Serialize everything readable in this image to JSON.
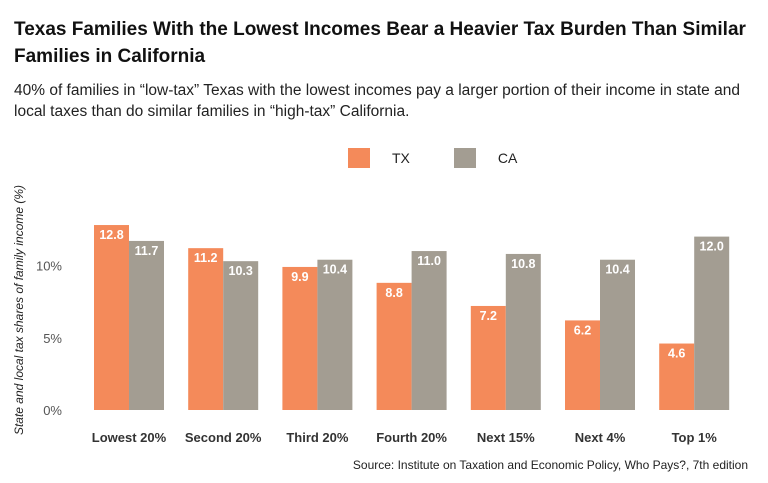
{
  "title": "Texas Families With the Lowest Incomes Bear a Heavier Tax Burden Than Similar Families in California",
  "subtitle": "40% of families in “low-tax” Texas with the lowest incomes pay a larger portion of their income in state and local taxes than do similar families in “high-tax” California.",
  "source": "Source: Institute on Taxation and Economic Policy, Who Pays?, 7th edition",
  "chart_data": {
    "type": "bar",
    "ylabel": "State and local tax shares of family income (%)",
    "ylim": [
      0,
      13
    ],
    "yticks": [
      {
        "value": 0,
        "label": "0%"
      },
      {
        "value": 5,
        "label": "5%"
      },
      {
        "value": 10,
        "label": "10%"
      }
    ],
    "grid": false,
    "legend": "top-center",
    "categories": [
      "Lowest 20%",
      "Second 20%",
      "Third 20%",
      "Fourth 20%",
      "Next 15%",
      "Next 4%",
      "Top 1%"
    ],
    "series": [
      {
        "name": "TX",
        "color": "#F48A5A",
        "values": [
          12.8,
          11.2,
          9.9,
          8.8,
          7.2,
          6.2,
          4.6
        ]
      },
      {
        "name": "CA",
        "color": "#A39D92",
        "values": [
          11.7,
          10.3,
          10.4,
          11.0,
          10.8,
          10.4,
          12.0
        ]
      }
    ]
  }
}
